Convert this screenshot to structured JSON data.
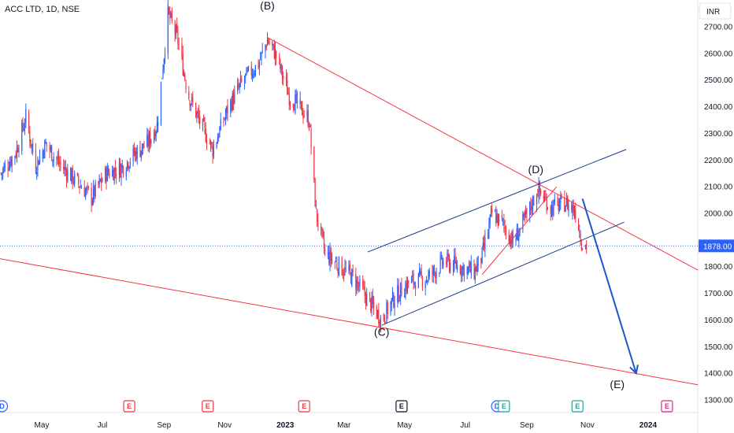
{
  "header": {
    "title": "ACC LTD, 1D, NSE"
  },
  "currency": "INR",
  "last_price": {
    "value": 1878,
    "label": "1878.00",
    "color": "#2962ff"
  },
  "colors": {
    "up": "#2962ff",
    "down": "#f23645",
    "trend": "#f23645",
    "channel": "#1e3a8a",
    "arrow": "#1e55c8"
  },
  "chart_data": {
    "type": "candlestick",
    "title": "ACC LTD, 1D, NSE",
    "ylim": [
      1300,
      2800
    ],
    "y_ticks": [
      1300,
      1400,
      1500,
      1600,
      1700,
      1800,
      1900,
      2000,
      2100,
      2200,
      2300,
      2400,
      2500,
      2600,
      2700
    ],
    "y_tick_labels": [
      "1300.00",
      "1400.00",
      "1500.00",
      "1600.00",
      "1700.00",
      "1800.00",
      "1900.00",
      "2000.00",
      "2100.00",
      "2200.00",
      "2300.00",
      "2400.00",
      "2500.00",
      "2600.00",
      "2700.00"
    ],
    "x_labels": [
      "May",
      "Jul",
      "Sep",
      "Nov",
      "2023",
      "Mar",
      "May",
      "Jul",
      "Sep",
      "Nov",
      "2024"
    ],
    "x_label_dates": [
      "2022-05-01",
      "2022-07-01",
      "2022-09-01",
      "2022-11-01",
      "2023-01-01",
      "2023-03-01",
      "2023-05-01",
      "2023-07-01",
      "2023-09-01",
      "2023-11-01",
      "2024-01-01"
    ],
    "x_range": [
      "2022-03-20",
      "2024-02-20"
    ],
    "close_path": [
      [
        "2022-03-21",
        2150
      ],
      [
        "2022-04-05",
        2230
      ],
      [
        "2022-04-15",
        2360
      ],
      [
        "2022-04-25",
        2180
      ],
      [
        "2022-05-05",
        2260
      ],
      [
        "2022-05-20",
        2180
      ],
      [
        "2022-06-10",
        2100
      ],
      [
        "2022-06-20",
        2060
      ],
      [
        "2022-07-05",
        2150
      ],
      [
        "2022-07-20",
        2170
      ],
      [
        "2022-08-01",
        2220
      ],
      [
        "2022-08-15",
        2260
      ],
      [
        "2022-08-25",
        2330
      ],
      [
        "2022-09-05",
        2750
      ],
      [
        "2022-09-15",
        2650
      ],
      [
        "2022-09-25",
        2450
      ],
      [
        "2022-10-05",
        2360
      ],
      [
        "2022-10-20",
        2240
      ],
      [
        "2022-11-05",
        2400
      ],
      [
        "2022-11-20",
        2500
      ],
      [
        "2022-12-05",
        2560
      ],
      [
        "2022-12-14",
        2650
      ],
      [
        "2022-12-22",
        2600
      ],
      [
        "2023-01-05",
        2440
      ],
      [
        "2023-01-15",
        2400
      ],
      [
        "2023-01-25",
        2350
      ],
      [
        "2023-02-01",
        2000
      ],
      [
        "2023-02-10",
        1850
      ],
      [
        "2023-02-25",
        1800
      ],
      [
        "2023-03-10",
        1760
      ],
      [
        "2023-03-28",
        1660
      ],
      [
        "2023-04-08",
        1600
      ],
      [
        "2023-04-20",
        1680
      ],
      [
        "2023-05-05",
        1740
      ],
      [
        "2023-05-25",
        1760
      ],
      [
        "2023-06-10",
        1820
      ],
      [
        "2023-06-25",
        1800
      ],
      [
        "2023-07-10",
        1780
      ],
      [
        "2023-07-18",
        1840
      ],
      [
        "2023-07-28",
        2000
      ],
      [
        "2023-08-08",
        1960
      ],
      [
        "2023-08-18",
        1890
      ],
      [
        "2023-09-01",
        1990
      ],
      [
        "2023-09-12",
        2090
      ],
      [
        "2023-09-25",
        2020
      ],
      [
        "2023-10-10",
        2040
      ],
      [
        "2023-10-20",
        2010
      ],
      [
        "2023-10-27",
        1880
      ],
      [
        "2023-10-31",
        1878
      ]
    ],
    "annotations": [
      {
        "label": "(B)",
        "date": "2022-12-14",
        "price": 2765
      },
      {
        "label": "(C)",
        "date": "2023-04-08",
        "price": 1540
      },
      {
        "label": "(D)",
        "date": "2023-09-10",
        "price": 2150
      },
      {
        "label": "(E)",
        "date": "2023-12-01",
        "price": 1345
      }
    ],
    "trend_lines": [
      {
        "name": "upper-trendline",
        "from": [
          "2022-12-14",
          2660
        ],
        "to": [
          "2024-02-20",
          1787
        ]
      },
      {
        "name": "lower-trendline",
        "from": [
          "2022-03-20",
          1830
        ],
        "to": [
          "2024-02-20",
          1357
        ]
      },
      {
        "name": "channel-top",
        "from": [
          "2023-03-25",
          1855
        ],
        "to": [
          "2023-12-10",
          2240
        ]
      },
      {
        "name": "channel-bottom",
        "from": [
          "2023-04-08",
          1580
        ],
        "to": [
          "2023-12-08",
          1967
        ]
      },
      {
        "name": "rising-wedge-line",
        "from": [
          "2023-07-18",
          1770
        ],
        "to": [
          "2023-10-01",
          2100
        ]
      }
    ],
    "projection_arrow": {
      "from": [
        "2023-10-27",
        2055
      ],
      "to": [
        "2023-12-20",
        1400
      ]
    },
    "events": [
      {
        "type": "D",
        "date": "2022-03-22",
        "color": "#2962ff"
      },
      {
        "type": "E",
        "date": "2022-07-28",
        "color": "#f23645"
      },
      {
        "type": "E",
        "date": "2022-10-15",
        "color": "#f23645"
      },
      {
        "type": "E",
        "date": "2023-01-20",
        "color": "#f23645"
      },
      {
        "type": "E",
        "date": "2023-04-28",
        "color": "#131722"
      },
      {
        "type": "D",
        "date": "2023-08-02",
        "color": "#2962ff"
      },
      {
        "type": "E",
        "date": "2023-08-09",
        "color": "#26a69a"
      },
      {
        "type": "E",
        "date": "2023-10-22",
        "color": "#26a69a"
      },
      {
        "type": "E",
        "date": "2024-01-20",
        "color": "#e91e8c"
      }
    ]
  }
}
